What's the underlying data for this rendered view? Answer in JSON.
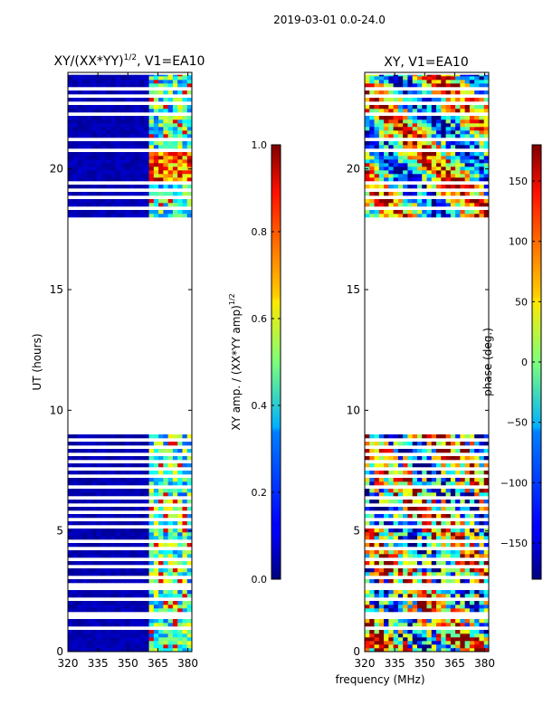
{
  "suptitle": "2019-03-01 0.0-24.0",
  "shared_xlabel": "frequency (MHz)",
  "chart_data": [
    {
      "type": "heatmap",
      "title_main": "XY/(XX*YY)",
      "title_sup": "1/2",
      "title_tail": ", V1=EA10",
      "ylabel": "UT (hours)",
      "xlim": [
        320,
        382
      ],
      "ylim": [
        0,
        24
      ],
      "xticks": [
        320,
        335,
        350,
        365,
        380
      ],
      "yticks": [
        0,
        5,
        10,
        15,
        20
      ],
      "value_range": [
        0,
        1
      ],
      "colorbar": {
        "label_main": "XY amp. / (XX*YY amp)",
        "label_sup": "1/2",
        "range": [
          0.0,
          1.0
        ],
        "ticks": [
          "0.0",
          "0.2",
          "0.4",
          "0.6",
          "0.8",
          "1.0"
        ]
      },
      "data_time_ranges_hours": [
        [
          0,
          9.0
        ],
        [
          18.0,
          23.9
        ]
      ],
      "blank_rows_hours": [
        0.9,
        1.3,
        1.55,
        2.05,
        2.5,
        2.62,
        2.95,
        3.4,
        3.7,
        4.25,
        4.55,
        5.05,
        5.35,
        5.65,
        5.95,
        6.35,
        6.7,
        7.15,
        7.45,
        7.75,
        8.05,
        8.45,
        8.7,
        18.3,
        18.8,
        19.0,
        19.35,
        20.65,
        21.1,
        22.15,
        22.6,
        23.0,
        23.3
      ]
    },
    {
      "type": "heatmap",
      "title": "XY, V1=EA10",
      "xlim": [
        320,
        382
      ],
      "ylim": [
        0,
        24
      ],
      "xticks": [
        320,
        335,
        350,
        365,
        380
      ],
      "yticks": [
        0,
        5,
        10,
        15,
        20
      ],
      "value_range": [
        -180,
        180
      ],
      "colorbar": {
        "label": "phase (deg.)",
        "range": [
          -180,
          180
        ],
        "ticks": [
          "−150",
          "−100",
          "−50",
          "0",
          "50",
          "100",
          "150"
        ]
      },
      "data_time_ranges_hours": [
        [
          0,
          9.0
        ],
        [
          18.0,
          23.9
        ]
      ],
      "blank_rows_hours": [
        0.9,
        1.3,
        1.55,
        2.05,
        2.5,
        2.62,
        2.95,
        3.4,
        3.7,
        4.25,
        4.55,
        5.05,
        5.35,
        5.65,
        5.95,
        6.35,
        6.7,
        7.15,
        7.45,
        7.75,
        8.05,
        8.45,
        8.7,
        18.3,
        18.8,
        19.0,
        19.35,
        20.65,
        21.1,
        22.15,
        22.6,
        23.0,
        23.3
      ]
    }
  ]
}
